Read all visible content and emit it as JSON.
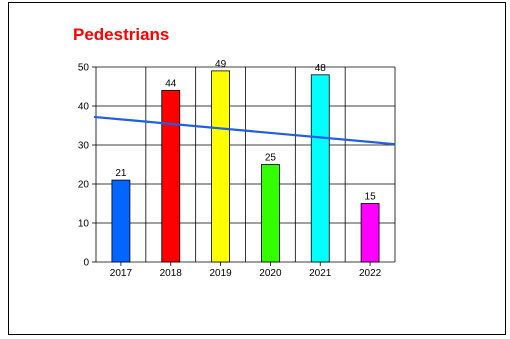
{
  "chart_data": {
    "type": "bar",
    "title": "Pedestrians",
    "categories": [
      "2017",
      "2018",
      "2019",
      "2020",
      "2021",
      "2022"
    ],
    "values": [
      21,
      44,
      49,
      25,
      48,
      15
    ],
    "bar_colors": [
      "#0066ff",
      "#ff0000",
      "#ffff00",
      "#33ff00",
      "#00ffff",
      "#ff00ff"
    ],
    "ylim": [
      0,
      50
    ],
    "yticks": [
      0,
      10,
      20,
      30,
      40,
      50
    ],
    "grid": true,
    "trendline": {
      "color": "#1f5fe0",
      "start_value": 37.2,
      "end_value": 30.2
    },
    "title_color": "#ff0000"
  }
}
